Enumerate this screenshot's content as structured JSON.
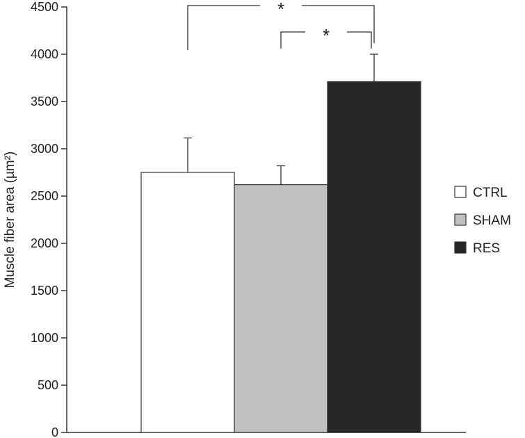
{
  "chart_data": {
    "type": "bar",
    "title": "",
    "xlabel": "",
    "ylabel": "Muscle fiber area (µm²)",
    "ylim": [
      0,
      4500
    ],
    "yticks": [
      0,
      500,
      1000,
      1500,
      2000,
      2500,
      3000,
      3500,
      4000,
      4500
    ],
    "grid": false,
    "legend_position": "right",
    "series": [
      {
        "name": "CTRL",
        "value": 2750,
        "error": 365,
        "color": "#ffffff"
      },
      {
        "name": "SHAM",
        "value": 2620,
        "error": 200,
        "color": "#c0c0c0"
      },
      {
        "name": "RES",
        "value": 3710,
        "error": 290,
        "color": "#262626"
      }
    ],
    "significance": [
      {
        "from": "CTRL",
        "to": "RES",
        "label": "*"
      },
      {
        "from": "SHAM",
        "to": "RES",
        "label": "*"
      }
    ]
  }
}
